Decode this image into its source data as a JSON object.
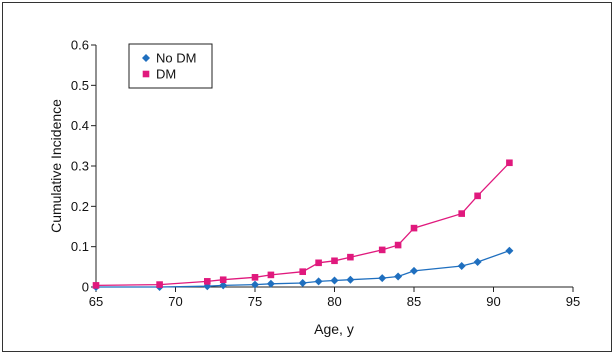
{
  "chart_data": {
    "type": "line",
    "xlabel": "Age, y",
    "ylabel": "Cumulative Incidence",
    "xlim": [
      65,
      95
    ],
    "ylim": [
      0,
      0.6
    ],
    "xticks": [
      "65",
      "70",
      "75",
      "80",
      "85",
      "90",
      "95"
    ],
    "yticks": [
      "0",
      "0.1",
      "0.2",
      "0.3",
      "0.4",
      "0.5",
      "0.6"
    ],
    "grid": false,
    "legend_position": "top-left",
    "series": [
      {
        "name": "No DM",
        "color": "#1f6fbf",
        "marker": "diamond",
        "x": [
          65,
          69,
          72,
          73,
          75,
          76,
          78,
          79,
          80,
          81,
          83,
          84,
          85,
          88,
          89,
          91
        ],
        "y": [
          0.0,
          0.0,
          0.002,
          0.004,
          0.006,
          0.008,
          0.01,
          0.014,
          0.016,
          0.018,
          0.022,
          0.026,
          0.04,
          0.052,
          0.062,
          0.09
        ]
      },
      {
        "name": "DM",
        "color": "#e0197d",
        "marker": "square",
        "x": [
          65,
          69,
          72,
          73,
          75,
          76,
          78,
          79,
          80,
          81,
          83,
          84,
          85,
          88,
          89,
          91
        ],
        "y": [
          0.004,
          0.006,
          0.014,
          0.018,
          0.024,
          0.03,
          0.038,
          0.06,
          0.065,
          0.074,
          0.092,
          0.104,
          0.146,
          0.182,
          0.226,
          0.308
        ]
      }
    ]
  }
}
